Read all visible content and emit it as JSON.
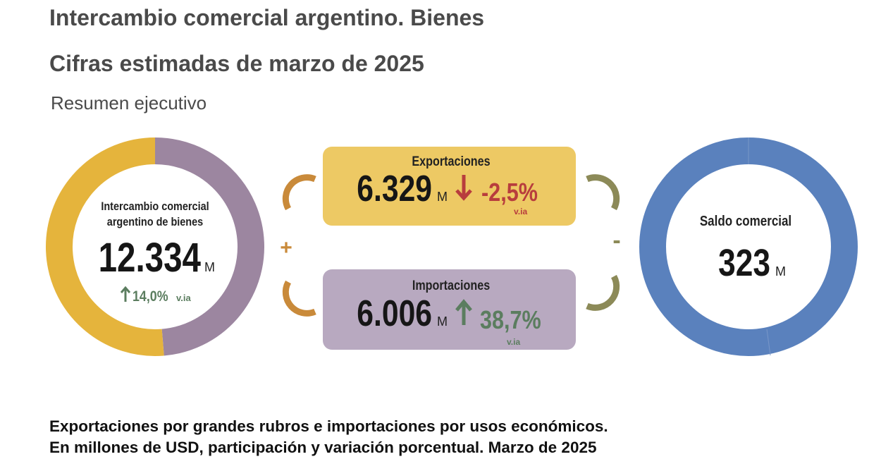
{
  "header": {
    "title": "Intercambio comercial argentino. Bienes",
    "subtitle": "Cifras estimadas de marzo de 2025",
    "section": "Resumen ejecutivo"
  },
  "total": {
    "label_lines": [
      "Intercambio comercial",
      "argentino de bienes"
    ],
    "value_label": "12.334",
    "unit": "M",
    "change": "14,0%",
    "change_label": "v.ia"
  },
  "exports": {
    "label": "Exportaciones",
    "value": 6329,
    "value_label": "6.329",
    "unit": "M",
    "change": "-2,5%",
    "change_label": "v.ia",
    "color": "#e5b43c"
  },
  "imports": {
    "label": "Importaciones",
    "value": 6006,
    "value_label": "6.006",
    "unit": "M",
    "change": "38,7%",
    "change_label": "v.ia",
    "color": "#9c86a0"
  },
  "operators": [
    "+",
    "-"
  ],
  "balance": {
    "label": "Saldo comercial",
    "value_label": "323",
    "unit": "M"
  },
  "footer": {
    "lines": [
      "Exportaciones por grandes rubros e importaciones por usos económicos.",
      "En millones de USD, participación y variación porcentual. Marzo de 2025"
    ]
  }
}
